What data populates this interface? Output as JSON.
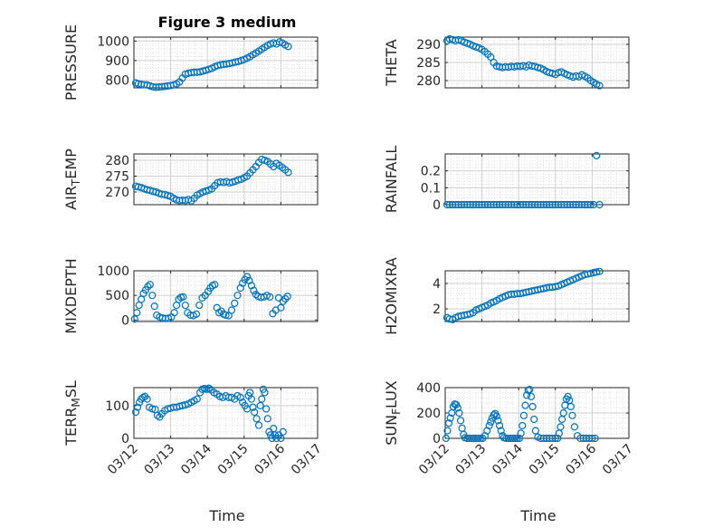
{
  "figure": {
    "title": "Figure 3 medium",
    "xlabel": "Time",
    "marker_color": "#0072BD",
    "x_ticks": [
      "03/12",
      "03/13",
      "03/14",
      "03/15",
      "03/16",
      "03/17"
    ]
  },
  "chart_data": [
    {
      "type": "scatter",
      "ylabel": "PRESSURE",
      "ylabel_parts": [
        {
          "text": "PRESSURE",
          "sub": false
        }
      ],
      "xlim": [
        "03/12",
        "03/17"
      ],
      "ylim": [
        760,
        1020
      ],
      "y_ticks": [
        800,
        900,
        1000
      ],
      "grid": true,
      "minor_grid": true,
      "x": [
        0.05,
        0.12,
        0.2,
        0.28,
        0.36,
        0.44,
        0.52,
        0.6,
        0.68,
        0.76,
        0.84,
        0.92,
        1.0,
        1.08,
        1.16,
        1.24,
        1.32,
        1.4,
        1.48,
        1.56,
        1.64,
        1.72,
        1.8,
        1.88,
        1.96,
        2.04,
        2.12,
        2.2,
        2.28,
        2.36,
        2.44,
        2.52,
        2.6,
        2.68,
        2.76,
        2.84,
        2.92,
        3.0,
        3.08,
        3.16,
        3.24,
        3.32,
        3.4,
        3.48,
        3.56,
        3.64,
        3.72,
        3.8,
        3.88,
        3.96,
        4.04,
        4.12,
        4.2
      ],
      "y": [
        785,
        780,
        778,
        776,
        775,
        770,
        765,
        763,
        764,
        766,
        767,
        770,
        772,
        775,
        780,
        790,
        810,
        830,
        835,
        838,
        840,
        840,
        842,
        846,
        850,
        855,
        860,
        868,
        874,
        878,
        880,
        882,
        885,
        888,
        892,
        895,
        900,
        905,
        912,
        920,
        930,
        938,
        948,
        958,
        968,
        978,
        985,
        990,
        985,
        995,
        990,
        980,
        972
      ]
    },
    {
      "type": "scatter",
      "ylabel": "THETA",
      "ylabel_parts": [
        {
          "text": "THETA",
          "sub": false
        }
      ],
      "xlim": [
        "03/12",
        "03/17"
      ],
      "ylim": [
        278,
        292
      ],
      "y_ticks": [
        280,
        285,
        290
      ],
      "grid": true,
      "minor_grid": true,
      "x": [
        0.05,
        0.12,
        0.2,
        0.28,
        0.36,
        0.44,
        0.52,
        0.6,
        0.68,
        0.76,
        0.84,
        0.92,
        1.0,
        1.08,
        1.16,
        1.24,
        1.32,
        1.4,
        1.48,
        1.56,
        1.64,
        1.72,
        1.8,
        1.88,
        1.96,
        2.04,
        2.12,
        2.2,
        2.28,
        2.36,
        2.44,
        2.52,
        2.6,
        2.68,
        2.76,
        2.84,
        2.92,
        3.0,
        3.08,
        3.16,
        3.24,
        3.32,
        3.4,
        3.48,
        3.56,
        3.64,
        3.72,
        3.8,
        3.88,
        3.96,
        4.04,
        4.12,
        4.2
      ],
      "y": [
        291.0,
        291.5,
        291.3,
        291.0,
        291.3,
        291.0,
        290.6,
        290.3,
        290.0,
        289.6,
        289.3,
        289.0,
        288.6,
        288.0,
        287.3,
        286.5,
        285.0,
        284.0,
        283.8,
        283.6,
        283.8,
        283.7,
        283.9,
        283.8,
        284.0,
        283.9,
        284.1,
        283.8,
        284.3,
        284.0,
        283.9,
        283.6,
        283.4,
        283.0,
        282.5,
        282.2,
        282.0,
        281.7,
        282.2,
        282.4,
        282.0,
        281.6,
        281.3,
        281.0,
        281.3,
        281.1,
        281.6,
        281.2,
        280.7,
        280.0,
        279.5,
        279.0,
        278.6
      ]
    },
    {
      "type": "scatter",
      "ylabel": "AIR_TEMP",
      "ylabel_parts": [
        {
          "text": "AIR",
          "sub": false
        },
        {
          "text": "T",
          "sub": true
        },
        {
          "text": "EMP",
          "sub": false
        }
      ],
      "xlim": [
        "03/12",
        "03/17"
      ],
      "ylim": [
        266,
        282
      ],
      "y_ticks": [
        270,
        275,
        280
      ],
      "grid": true,
      "minor_grid": true,
      "x": [
        0.05,
        0.12,
        0.2,
        0.28,
        0.36,
        0.44,
        0.52,
        0.6,
        0.68,
        0.76,
        0.84,
        0.92,
        1.0,
        1.08,
        1.16,
        1.24,
        1.32,
        1.4,
        1.48,
        1.56,
        1.64,
        1.72,
        1.8,
        1.88,
        1.96,
        2.04,
        2.12,
        2.2,
        2.28,
        2.36,
        2.44,
        2.52,
        2.6,
        2.68,
        2.76,
        2.84,
        2.92,
        3.0,
        3.08,
        3.16,
        3.24,
        3.32,
        3.4,
        3.48,
        3.56,
        3.64,
        3.72,
        3.8,
        3.88,
        3.96,
        4.04,
        4.12,
        4.2
      ],
      "y": [
        271.8,
        271.6,
        271.4,
        271.0,
        270.7,
        270.5,
        270.2,
        270.0,
        269.6,
        269.3,
        269.2,
        268.9,
        268.6,
        268.0,
        267.5,
        267.3,
        267.4,
        267.3,
        267.6,
        267.2,
        268.0,
        269.0,
        269.5,
        270.0,
        270.3,
        270.6,
        271.0,
        272.0,
        272.9,
        273.2,
        273.0,
        273.3,
        272.9,
        273.1,
        273.4,
        273.8,
        274.0,
        274.5,
        275.0,
        276.0,
        277.0,
        278.0,
        279.3,
        280.3,
        280.0,
        279.6,
        278.8,
        278.0,
        279.0,
        278.4,
        277.7,
        277.0,
        276.2
      ]
    },
    {
      "type": "scatter",
      "ylabel": "RAINFALL",
      "ylabel_parts": [
        {
          "text": "RAINFALL",
          "sub": false
        }
      ],
      "xlim": [
        "03/12",
        "03/17"
      ],
      "ylim": [
        0,
        0.3
      ],
      "y_ticks": [
        0,
        0.1,
        0.2
      ],
      "y_tick_labels": [
        "0",
        "0.1",
        "0.2"
      ],
      "grid": true,
      "minor_grid": true,
      "x": [
        0.05,
        0.12,
        0.2,
        0.28,
        0.36,
        0.44,
        0.52,
        0.6,
        0.68,
        0.76,
        0.84,
        0.92,
        1.0,
        1.08,
        1.16,
        1.24,
        1.32,
        1.4,
        1.48,
        1.56,
        1.64,
        1.72,
        1.8,
        1.88,
        1.96,
        2.04,
        2.12,
        2.2,
        2.28,
        2.36,
        2.44,
        2.52,
        2.6,
        2.68,
        2.76,
        2.84,
        2.92,
        3.0,
        3.08,
        3.16,
        3.24,
        3.32,
        3.4,
        3.48,
        3.56,
        3.64,
        3.72,
        3.8,
        3.88,
        3.96,
        4.04,
        4.12,
        4.2
      ],
      "y": [
        0,
        0,
        0,
        0,
        0,
        0,
        0,
        0,
        0,
        0,
        0,
        0,
        0,
        0,
        0,
        0,
        0,
        0,
        0,
        0,
        0,
        0,
        0,
        0,
        0,
        0,
        0,
        0,
        0,
        0,
        0,
        0,
        0,
        0,
        0,
        0,
        0,
        0,
        0,
        0,
        0,
        0,
        0,
        0,
        0,
        0,
        0,
        0,
        0,
        0,
        0,
        0.29,
        0
      ]
    },
    {
      "type": "scatter",
      "ylabel": "MIXDEPTH",
      "ylabel_parts": [
        {
          "text": "MIXDEPTH",
          "sub": false
        }
      ],
      "xlim": [
        "03/12",
        "03/17"
      ],
      "ylim": [
        -30,
        1000
      ],
      "y_ticks": [
        0,
        500,
        1000
      ],
      "grid": true,
      "minor_grid": true,
      "x": [
        0.02,
        0.08,
        0.14,
        0.2,
        0.26,
        0.32,
        0.38,
        0.44,
        0.5,
        0.56,
        0.62,
        0.7,
        0.78,
        0.86,
        0.94,
        1.02,
        1.1,
        1.16,
        1.22,
        1.28,
        1.34,
        1.4,
        1.46,
        1.54,
        1.62,
        1.7,
        1.78,
        1.86,
        1.94,
        2.02,
        2.08,
        2.14,
        2.2,
        2.26,
        2.32,
        2.38,
        2.44,
        2.5,
        2.58,
        2.66,
        2.74,
        2.82,
        2.9,
        2.96,
        3.02,
        3.08,
        3.14,
        3.2,
        3.26,
        3.32,
        3.38,
        3.46,
        3.54,
        3.62,
        3.7,
        3.78,
        3.86,
        3.94,
        4.0,
        4.06,
        4.12,
        4.18
      ],
      "y": [
        20,
        150,
        300,
        420,
        540,
        610,
        680,
        720,
        500,
        280,
        100,
        60,
        40,
        30,
        35,
        60,
        150,
        300,
        420,
        460,
        470,
        300,
        150,
        100,
        90,
        120,
        300,
        450,
        500,
        580,
        650,
        700,
        720,
        250,
        150,
        180,
        120,
        100,
        90,
        200,
        340,
        500,
        650,
        750,
        820,
        880,
        800,
        700,
        600,
        520,
        480,
        460,
        470,
        500,
        470,
        130,
        200,
        450,
        250,
        380,
        430,
        480
      ]
    },
    {
      "type": "scatter",
      "ylabel": "H2OMIXRA",
      "ylabel_parts": [
        {
          "text": "H2OMIXRA",
          "sub": false
        }
      ],
      "xlim": [
        "03/12",
        "03/17"
      ],
      "ylim": [
        1,
        5
      ],
      "y_ticks": [
        2,
        4
      ],
      "grid": true,
      "minor_grid": true,
      "x": [
        0.05,
        0.12,
        0.2,
        0.28,
        0.36,
        0.44,
        0.52,
        0.6,
        0.68,
        0.76,
        0.84,
        0.92,
        1.0,
        1.08,
        1.16,
        1.24,
        1.32,
        1.4,
        1.48,
        1.56,
        1.64,
        1.72,
        1.8,
        1.88,
        1.96,
        2.04,
        2.12,
        2.2,
        2.28,
        2.36,
        2.44,
        2.52,
        2.6,
        2.68,
        2.76,
        2.84,
        2.92,
        3.0,
        3.08,
        3.16,
        3.24,
        3.32,
        3.4,
        3.48,
        3.56,
        3.64,
        3.72,
        3.8,
        3.88,
        3.96,
        4.04,
        4.12,
        4.2
      ],
      "y": [
        1.3,
        1.2,
        1.15,
        1.3,
        1.4,
        1.45,
        1.5,
        1.55,
        1.6,
        1.7,
        1.9,
        2.0,
        2.1,
        2.2,
        2.3,
        2.45,
        2.55,
        2.65,
        2.8,
        2.9,
        3.0,
        3.1,
        3.15,
        3.15,
        3.2,
        3.2,
        3.25,
        3.3,
        3.35,
        3.4,
        3.45,
        3.5,
        3.55,
        3.6,
        3.65,
        3.7,
        3.7,
        3.75,
        3.8,
        3.9,
        4.0,
        4.1,
        4.2,
        4.3,
        4.4,
        4.5,
        4.6,
        4.7,
        4.75,
        4.8,
        4.85,
        4.9,
        4.95
      ]
    },
    {
      "type": "scatter",
      "ylabel": "TERR_MSL",
      "ylabel_parts": [
        {
          "text": "TERR",
          "sub": false
        },
        {
          "text": "M",
          "sub": true
        },
        {
          "text": "SL",
          "sub": false
        }
      ],
      "xlim": [
        "03/12",
        "03/17"
      ],
      "ylim": [
        0,
        155
      ],
      "y_ticks": [
        0,
        100
      ],
      "grid": true,
      "minor_grid": true,
      "x": [
        0.05,
        0.1,
        0.15,
        0.2,
        0.25,
        0.3,
        0.36,
        0.42,
        0.5,
        0.58,
        0.64,
        0.7,
        0.76,
        0.84,
        0.92,
        1.0,
        1.08,
        1.16,
        1.24,
        1.32,
        1.4,
        1.48,
        1.56,
        1.64,
        1.72,
        1.8,
        1.86,
        1.92,
        1.98,
        2.04,
        2.1,
        2.18,
        2.26,
        2.34,
        2.42,
        2.5,
        2.58,
        2.66,
        2.74,
        2.82,
        2.9,
        2.96,
        3.02,
        3.08,
        3.12,
        3.16,
        3.2,
        3.24,
        3.28,
        3.34,
        3.4,
        3.44,
        3.48,
        3.52,
        3.56,
        3.6,
        3.64,
        3.68,
        3.72,
        3.76,
        3.8,
        3.84,
        3.88,
        3.94,
        4.0,
        4.06
      ],
      "y": [
        80,
        95,
        110,
        120,
        125,
        128,
        120,
        95,
        90,
        88,
        70,
        65,
        75,
        85,
        90,
        92,
        95,
        95,
        98,
        100,
        102,
        105,
        110,
        115,
        120,
        140,
        150,
        152,
        150,
        153,
        148,
        140,
        135,
        128,
        125,
        130,
        125,
        125,
        120,
        130,
        125,
        110,
        100,
        90,
        130,
        140,
        120,
        95,
        80,
        60,
        40,
        100,
        120,
        150,
        140,
        90,
        60,
        20,
        10,
        0,
        30,
        10,
        0,
        10,
        0,
        20
      ]
    },
    {
      "type": "scatter",
      "ylabel": "SUN_FLUX",
      "ylabel_parts": [
        {
          "text": "SUN",
          "sub": false
        },
        {
          "text": "F",
          "sub": true
        },
        {
          "text": "LUX",
          "sub": false
        }
      ],
      "xlim": [
        "03/12",
        "03/17"
      ],
      "ylim": [
        0,
        400
      ],
      "y_ticks": [
        0,
        200,
        400
      ],
      "grid": true,
      "minor_grid": true,
      "x": [
        0.02,
        0.06,
        0.1,
        0.14,
        0.18,
        0.22,
        0.26,
        0.3,
        0.34,
        0.38,
        0.42,
        0.46,
        0.5,
        0.54,
        0.6,
        0.66,
        0.72,
        0.78,
        0.84,
        0.9,
        0.96,
        1.02,
        1.08,
        1.14,
        1.2,
        1.24,
        1.28,
        1.32,
        1.36,
        1.4,
        1.44,
        1.48,
        1.52,
        1.56,
        1.6,
        1.66,
        1.72,
        1.78,
        1.84,
        1.9,
        1.96,
        2.02,
        2.06,
        2.1,
        2.14,
        2.18,
        2.22,
        2.26,
        2.3,
        2.34,
        2.38,
        2.42,
        2.46,
        2.52,
        2.6,
        2.68,
        2.76,
        2.84,
        2.92,
        3.0,
        3.06,
        3.1,
        3.14,
        3.18,
        3.22,
        3.26,
        3.3,
        3.34,
        3.38,
        3.42,
        3.46,
        3.52,
        3.6,
        3.68,
        3.76,
        3.84,
        3.92,
        4.0,
        4.08
      ],
      "y": [
        0,
        60,
        120,
        160,
        200,
        250,
        270,
        265,
        240,
        200,
        140,
        80,
        30,
        5,
        0,
        0,
        0,
        0,
        0,
        0,
        0,
        0,
        20,
        60,
        100,
        130,
        160,
        185,
        195,
        175,
        140,
        100,
        60,
        20,
        5,
        0,
        0,
        0,
        0,
        0,
        0,
        0,
        40,
        100,
        180,
        260,
        340,
        380,
        385,
        330,
        250,
        150,
        60,
        10,
        0,
        0,
        0,
        0,
        0,
        0,
        0,
        40,
        90,
        150,
        200,
        260,
        310,
        330,
        300,
        250,
        180,
        90,
        20,
        0,
        0,
        0,
        0,
        0,
        0
      ]
    }
  ]
}
